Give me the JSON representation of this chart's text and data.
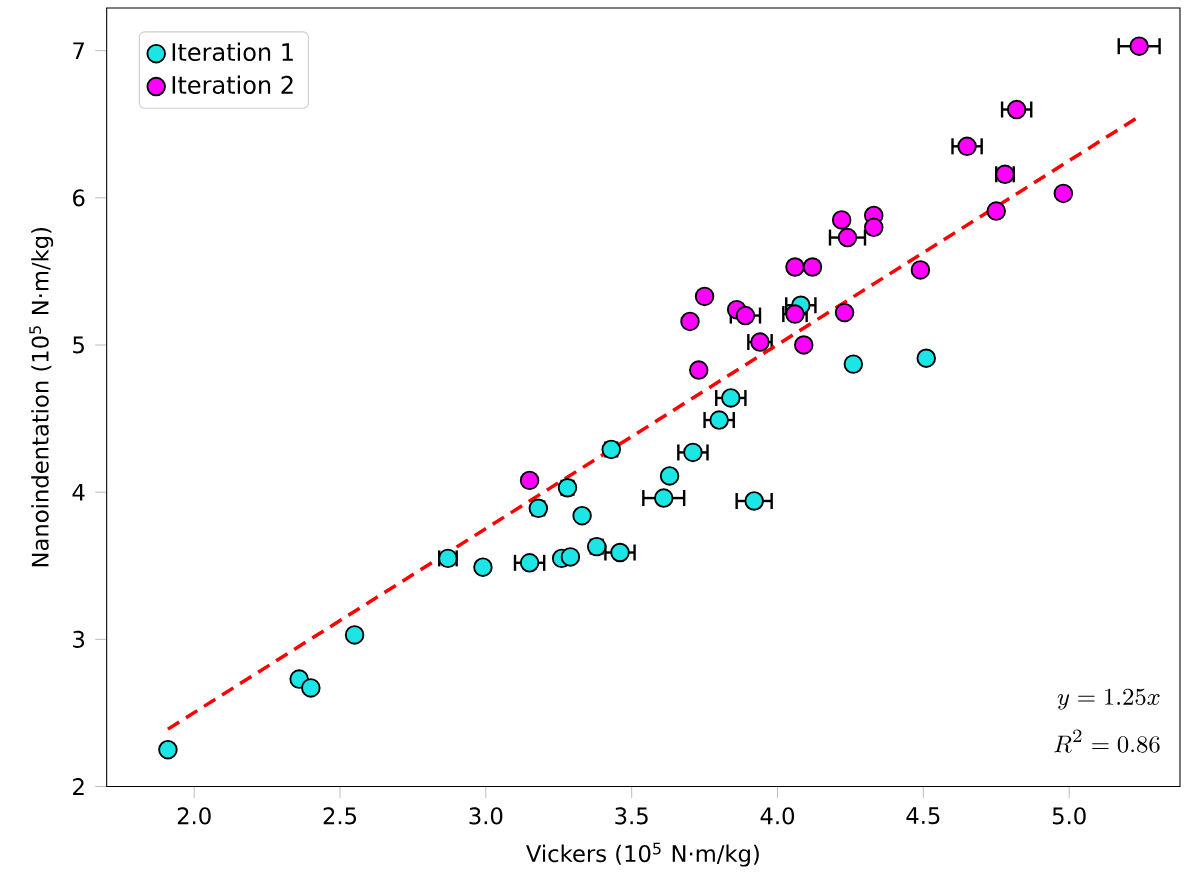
{
  "chart_data": {
    "type": "scatter",
    "xlabel": "Vickers (10$^{5}$ N·m/kg)",
    "ylabel": "Nanoindentation (10$^{5}$ N·m/kg)",
    "xlim": [
      1.7,
      5.38
    ],
    "ylim": [
      2.0,
      7.29
    ],
    "xticks": [
      {
        "value": 2,
        "label": "2.0"
      },
      {
        "value": 2.5,
        "label": "2.5"
      },
      {
        "value": 3,
        "label": "3.0"
      },
      {
        "value": 3.5,
        "label": "3.5"
      },
      {
        "value": 4,
        "label": "4.0"
      },
      {
        "value": 4.5,
        "label": "4.5"
      },
      {
        "value": 5,
        "label": "5.0"
      }
    ],
    "yticks": [
      2,
      3,
      4,
      5,
      6,
      7
    ],
    "legend": "top left",
    "grid": false,
    "annotations": [
      "y = 1.25x",
      "R^{2} = 0.86"
    ],
    "series": [
      {
        "name": "Iteration 1",
        "color": "#1ce5e5",
        "marker": "circle",
        "x": [
          1.91,
          2.36,
          2.4,
          2.55,
          2.87,
          2.99,
          3.15,
          3.26,
          3.29,
          3.38,
          3.46,
          3.18,
          3.28,
          3.33,
          3.43,
          3.63,
          3.61,
          3.71,
          3.8,
          3.84,
          3.92,
          4.08,
          4.26,
          4.51
        ],
        "values": [
          2.25,
          2.73,
          2.67,
          3.03,
          3.55,
          3.49,
          3.52,
          3.55,
          3.56,
          3.63,
          3.59,
          3.89,
          4.03,
          3.84,
          4.29,
          4.11,
          3.96,
          4.27,
          4.49,
          4.64,
          3.94,
          5.27,
          4.87,
          4.91
        ],
        "xerrors": [
          null,
          null,
          null,
          null,
          0.03,
          null,
          0.05,
          null,
          null,
          0.02,
          0.05,
          0.02,
          0.02,
          null,
          0.02,
          null,
          0.07,
          0.05,
          0.05,
          0.05,
          0.06,
          0.05,
          null,
          null
        ]
      },
      {
        "name": "Iteration 2",
        "color": "#ff00ff",
        "marker": "circle",
        "x": [
          3.15,
          3.73,
          3.94,
          4.09,
          4.23,
          4.06,
          3.7,
          3.75,
          3.86,
          3.89,
          4.06,
          4.12,
          4.49,
          4.22,
          4.33,
          4.33,
          4.24,
          4.75,
          4.98,
          4.78,
          4.65,
          4.82,
          5.24
        ],
        "values": [
          4.08,
          4.83,
          5.02,
          5.0,
          5.22,
          5.21,
          5.16,
          5.33,
          5.24,
          5.2,
          5.53,
          5.53,
          5.51,
          5.85,
          5.88,
          5.8,
          5.73,
          5.91,
          6.03,
          6.16,
          6.35,
          6.6,
          7.03
        ],
        "xerrors": [
          null,
          null,
          0.04,
          null,
          null,
          0.04,
          null,
          null,
          null,
          0.05,
          null,
          null,
          null,
          null,
          null,
          null,
          0.06,
          null,
          null,
          0.03,
          0.05,
          0.05,
          0.07
        ]
      },
      {
        "type": "line",
        "color": "#ff0000",
        "line_style": "dashed",
        "marker": "none",
        "x": [
          1.91,
          5.23
        ],
        "values": [
          2.39,
          6.54
        ]
      }
    ]
  }
}
